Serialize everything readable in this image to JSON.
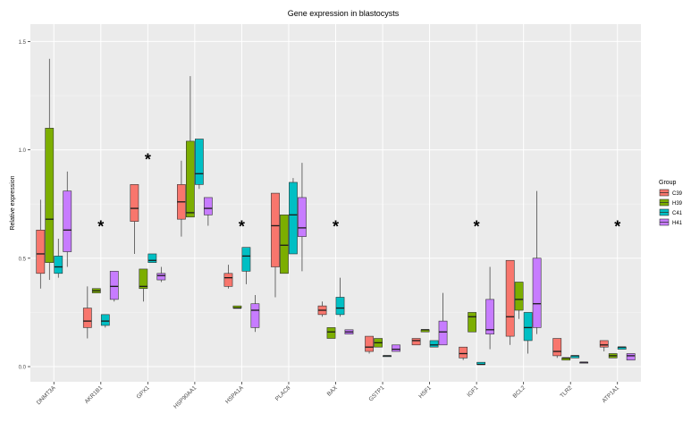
{
  "chart_data": {
    "type": "boxplot",
    "title": "Gene expression in blastocysts",
    "xlabel": "",
    "ylabel": "Relative expression",
    "ylim": [
      -0.07,
      1.58
    ],
    "yticks": [
      0.0,
      0.5,
      1.0,
      1.5
    ],
    "ytick_labels": [
      "0.0",
      "0.5",
      "1.0",
      "1.5"
    ],
    "categories": [
      "DNMT3A",
      "AKR1B1",
      "GPX1",
      "HSP90AA1",
      "HSPA1A",
      "PLAC8",
      "BAX",
      "GSTP1",
      "HSF1",
      "IGF1",
      "BCL2",
      "TLR2",
      "ATP1A1"
    ],
    "significance_marker": "*",
    "significant_categories": [
      "AKR1B1",
      "GPX1",
      "HSPA1A",
      "BAX",
      "IGF1",
      "ATP1A1"
    ],
    "legend": {
      "title": "Group",
      "position": "right"
    },
    "series": [
      {
        "name": "C39",
        "color": "#F8766D",
        "boxes": [
          [
            0.36,
            0.43,
            0.52,
            0.63,
            0.77
          ],
          [
            0.13,
            0.18,
            0.21,
            0.27,
            0.37
          ],
          [
            0.52,
            0.67,
            0.73,
            0.84,
            0.84
          ],
          [
            0.6,
            0.68,
            0.76,
            0.84,
            0.95
          ],
          [
            0.36,
            0.37,
            0.41,
            0.43,
            0.47
          ],
          [
            0.32,
            0.46,
            0.65,
            0.8,
            0.8
          ],
          [
            0.23,
            0.24,
            0.26,
            0.28,
            0.3
          ],
          [
            0.06,
            0.07,
            0.09,
            0.14,
            0.14
          ],
          [
            0.1,
            0.1,
            0.12,
            0.13,
            0.13
          ],
          [
            0.03,
            0.04,
            0.06,
            0.09,
            0.09
          ],
          [
            0.1,
            0.14,
            0.23,
            0.49,
            0.49
          ],
          [
            0.04,
            0.05,
            0.07,
            0.13,
            0.13
          ],
          [
            0.07,
            0.09,
            0.1,
            0.12,
            0.12
          ]
        ]
      },
      {
        "name": "H39",
        "color": "#7CAE00",
        "boxes": [
          [
            0.4,
            0.48,
            0.68,
            1.1,
            1.42
          ],
          [
            0.34,
            0.34,
            0.35,
            0.36,
            0.36
          ],
          [
            0.3,
            0.36,
            0.37,
            0.45,
            0.45
          ],
          [
            0.69,
            0.69,
            0.71,
            1.04,
            1.34
          ],
          [
            0.27,
            0.27,
            0.27,
            0.28,
            0.28
          ],
          [
            0.43,
            0.43,
            0.56,
            0.7,
            0.7
          ],
          [
            0.13,
            0.13,
            0.16,
            0.18,
            0.18
          ],
          [
            0.09,
            0.09,
            0.11,
            0.13,
            0.13
          ],
          [
            0.16,
            0.16,
            0.17,
            0.17,
            0.17
          ],
          [
            0.16,
            0.16,
            0.23,
            0.25,
            0.25
          ],
          [
            0.22,
            0.26,
            0.31,
            0.39,
            0.39
          ],
          [
            0.03,
            0.03,
            0.04,
            0.04,
            0.04
          ],
          [
            0.04,
            0.04,
            0.05,
            0.06,
            0.06
          ]
        ]
      },
      {
        "name": "C41",
        "color": "#00BFC4",
        "boxes": [
          [
            0.41,
            0.43,
            0.46,
            0.51,
            0.59
          ],
          [
            0.18,
            0.19,
            0.21,
            0.24,
            0.24
          ],
          [
            0.48,
            0.48,
            0.49,
            0.52,
            0.52
          ],
          [
            0.82,
            0.84,
            0.89,
            1.05,
            1.05
          ],
          [
            0.38,
            0.44,
            0.51,
            0.55,
            0.55
          ],
          [
            0.52,
            0.52,
            0.7,
            0.85,
            0.87
          ],
          [
            0.23,
            0.24,
            0.27,
            0.32,
            0.41
          ],
          [
            0.05,
            0.05,
            0.05,
            0.05,
            0.05
          ],
          [
            0.09,
            0.09,
            0.1,
            0.12,
            0.12
          ],
          [
            0.01,
            0.01,
            0.01,
            0.02,
            0.02
          ],
          [
            0.06,
            0.12,
            0.18,
            0.25,
            0.25
          ],
          [
            0.04,
            0.04,
            0.05,
            0.05,
            0.05
          ],
          [
            0.08,
            0.08,
            0.09,
            0.09,
            0.09
          ]
        ]
      },
      {
        "name": "H41",
        "color": "#C77CFF",
        "boxes": [
          [
            0.46,
            0.53,
            0.63,
            0.81,
            0.9
          ],
          [
            0.3,
            0.31,
            0.37,
            0.44,
            0.44
          ],
          [
            0.39,
            0.4,
            0.42,
            0.43,
            0.46
          ],
          [
            0.65,
            0.7,
            0.73,
            0.78,
            0.78
          ],
          [
            0.16,
            0.18,
            0.26,
            0.29,
            0.33
          ],
          [
            0.44,
            0.6,
            0.64,
            0.78,
            0.94
          ],
          [
            0.15,
            0.15,
            0.16,
            0.17,
            0.17
          ],
          [
            0.07,
            0.07,
            0.08,
            0.1,
            0.1
          ],
          [
            0.1,
            0.1,
            0.16,
            0.21,
            0.34
          ],
          [
            0.08,
            0.15,
            0.17,
            0.31,
            0.46
          ],
          [
            0.15,
            0.18,
            0.29,
            0.5,
            0.81
          ],
          [
            0.02,
            0.02,
            0.02,
            0.02,
            0.02
          ],
          [
            0.03,
            0.03,
            0.05,
            0.06,
            0.06
          ]
        ]
      }
    ]
  }
}
